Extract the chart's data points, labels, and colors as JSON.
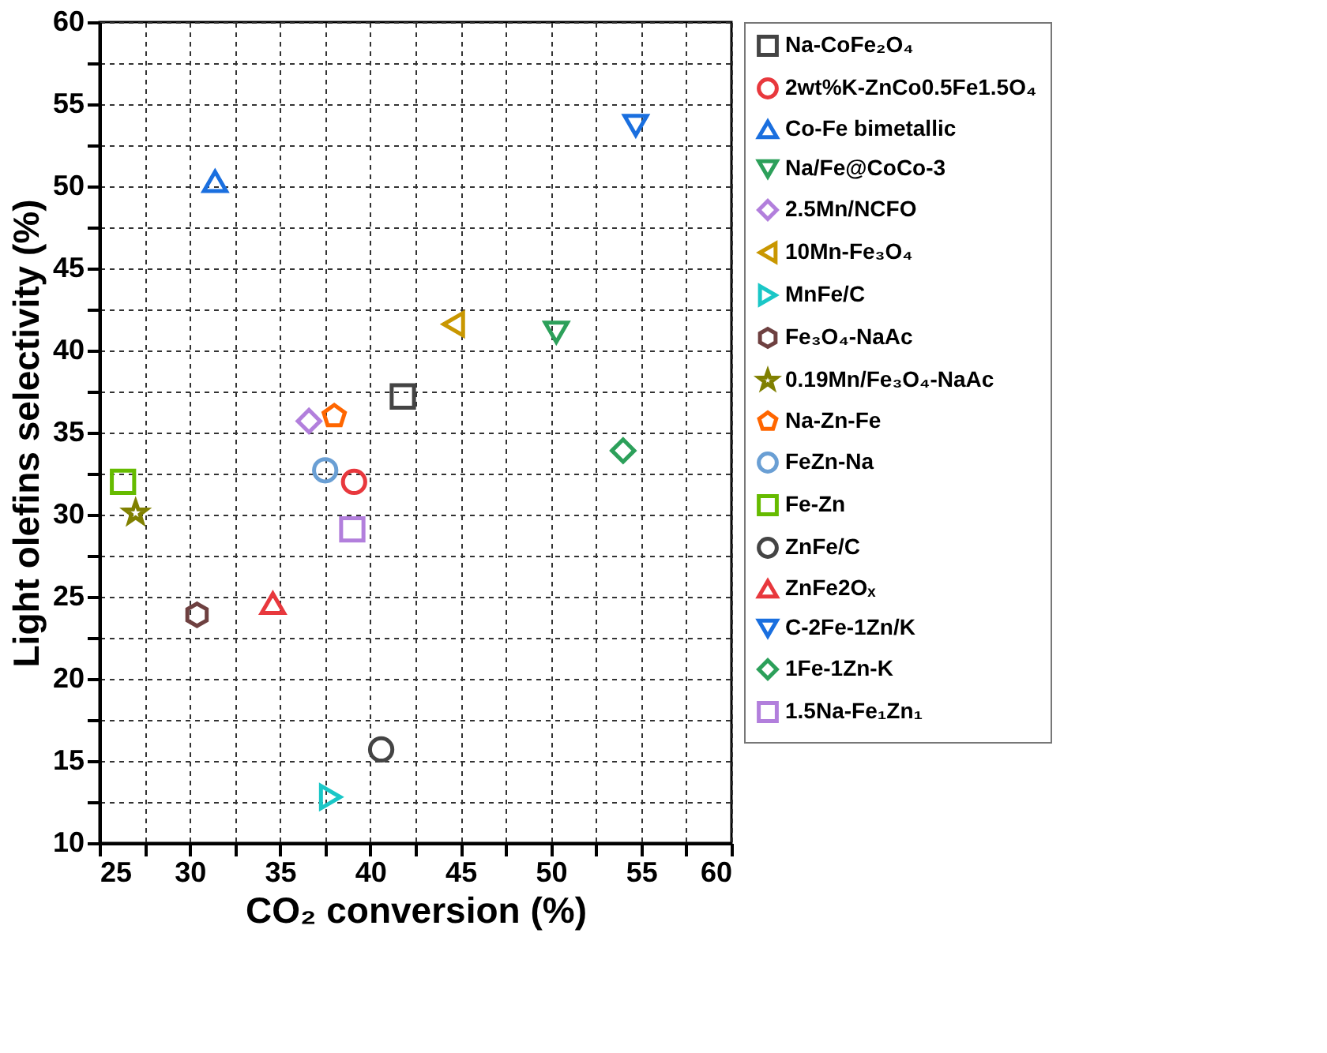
{
  "chart_data": {
    "type": "scatter",
    "xlabel": "CO₂ conversion (%)",
    "ylabel": "Light olefins selectivity (%)",
    "xlim": [
      25,
      60
    ],
    "ylim": [
      10,
      60
    ],
    "xticks": [
      25,
      {
        "value": 27.5,
        "label": null
      },
      30,
      {
        "value": 32.5,
        "label": null
      },
      35,
      {
        "value": 37.5,
        "label": null
      },
      40,
      {
        "value": 42.5,
        "label": null
      },
      45,
      {
        "value": 47.5,
        "label": null
      },
      50,
      {
        "value": 52.5,
        "label": null
      },
      55,
      {
        "value": 57.5,
        "label": null
      },
      60
    ],
    "yticks": [
      10,
      {
        "value": 12.5,
        "label": null
      },
      15,
      {
        "value": 17.5,
        "label": null
      },
      20,
      {
        "value": 22.5,
        "label": null
      },
      25,
      {
        "value": 27.5,
        "label": null
      },
      30,
      {
        "value": 32.5,
        "label": null
      },
      35,
      {
        "value": 37.5,
        "label": null
      },
      40,
      {
        "value": 42.5,
        "label": null
      },
      45,
      {
        "value": 47.5,
        "label": null
      },
      50,
      {
        "value": 52.5,
        "label": null
      },
      55,
      {
        "value": 57.5,
        "label": null
      },
      60
    ],
    "grid": true,
    "legend": "right",
    "series": [
      {
        "name": "Na-CoFe₂O₄",
        "color": "#444444",
        "marker": "square",
        "x": [
          41.8
        ],
        "values": [
          37.2
        ]
      },
      {
        "name": "2wt%K-ZnCo0.5Fe1.5O₄",
        "color": "#e8383d",
        "marker": "circle",
        "x": [
          39.1
        ],
        "values": [
          32.0
        ]
      },
      {
        "name": "Co-Fe bimetallic",
        "color": "#1a6fdf",
        "marker": "triangle",
        "x": [
          31.4
        ],
        "values": [
          50.3
        ]
      },
      {
        "name": "Na/Fe@CoCo-3",
        "color": "#2ca05a",
        "marker": "triangle-down",
        "x": [
          50.3
        ],
        "values": [
          41.1
        ]
      },
      {
        "name": "2.5Mn/NCFO",
        "color": "#b27fdc",
        "marker": "diamond",
        "x": [
          36.6
        ],
        "values": [
          35.7
        ]
      },
      {
        "name": "10Mn-Fe₃O₄",
        "color": "#c99700",
        "marker": "triangle-left",
        "x": [
          44.6
        ],
        "values": [
          41.6
        ]
      },
      {
        "name": "MnFe/C",
        "color": "#1ac7c7",
        "marker": "triangle-right",
        "x": [
          37.8
        ],
        "values": [
          12.8
        ]
      },
      {
        "name": "Fe₃O₄-NaAc",
        "color": "#6e4040",
        "x": [
          30.4
        ],
        "values": [
          23.9
        ]
      },
      {
        "name": "0.19Mn/Fe₃O₄-NaAc",
        "color": "#808000",
        "marker": "star",
        "x": [
          27.0
        ],
        "values": [
          30.1
        ]
      },
      {
        "name": "Na-Zn-Fe",
        "color": "#ff6600",
        "x": [
          38.0
        ],
        "values": [
          36.0
        ]
      },
      {
        "name": "FeZn-Na",
        "color": "#6a9fd4",
        "marker": "circle",
        "x": [
          37.5
        ],
        "values": [
          32.7
        ]
      },
      {
        "name": "Fe-Zn",
        "color": "#66bb00",
        "marker": "square",
        "x": [
          26.3
        ],
        "values": [
          32.0
        ]
      },
      {
        "name": "ZnFe/C",
        "color": "#444444",
        "marker": "circle",
        "x": [
          40.6
        ],
        "values": [
          15.7
        ]
      },
      {
        "name": "ZnFe2Oₓ",
        "color": "#e8383d",
        "marker": "triangle",
        "x": [
          34.6
        ],
        "values": [
          24.6
        ]
      },
      {
        "name": "C-2Fe-1Zn/K",
        "color": "#1a6fdf",
        "marker": "triangle-down",
        "x": [
          54.7
        ],
        "values": [
          53.7
        ]
      },
      {
        "name": "1Fe-1Zn-K",
        "color": "#2ca05a",
        "marker": "diamond",
        "x": [
          54.0
        ],
        "values": [
          33.9
        ]
      },
      {
        "name": "1.5Na-Fe₁Zn₁",
        "color": "#b27fdc",
        "marker": "square",
        "x": [
          39.0
        ],
        "values": [
          29.1
        ]
      }
    ]
  }
}
